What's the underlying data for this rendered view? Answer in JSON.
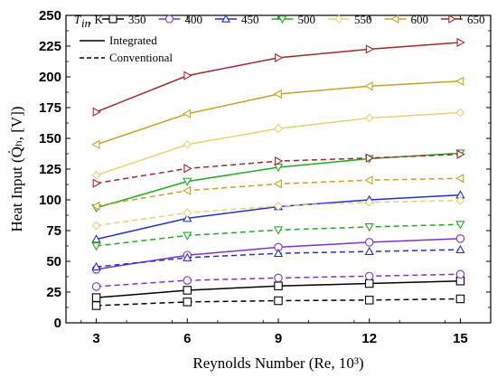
{
  "chart_data": {
    "type": "line",
    "title": "",
    "xlabel": "Reynolds Number (Re, 10³)",
    "ylabel": "Heat Input (Q̇ₕ, [V])",
    "x": [
      3,
      6,
      9,
      12,
      15
    ],
    "xlim": [
      2,
      16
    ],
    "ylim": [
      0,
      250
    ],
    "x_ticks": [
      3,
      6,
      9,
      12,
      15
    ],
    "y_ticks": [
      0,
      25,
      50,
      75,
      100,
      125,
      150,
      175,
      200,
      225,
      250
    ],
    "legend": {
      "title": "T",
      "title_sub": "in",
      "title_suffix": ", K",
      "placement": "top",
      "temperature_entries": [
        "350",
        "400",
        "450",
        "500",
        "550",
        "600",
        "650"
      ],
      "style_entries": [
        {
          "label": "Integrated",
          "dash": "solid"
        },
        {
          "label": "Conventional",
          "dash": "dashed"
        }
      ]
    },
    "series": [
      {
        "name": "350",
        "color": "#000000",
        "marker": "square",
        "integrated": [
          20.5,
          26.5,
          30,
          32,
          34
        ],
        "conventional": [
          14,
          17,
          18,
          18.5,
          19.5
        ]
      },
      {
        "name": "400",
        "color": "#7b33c8",
        "marker": "circle",
        "integrated": [
          43.5,
          55,
          61.5,
          65.5,
          68.5
        ],
        "conventional": [
          29.5,
          34.5,
          36.5,
          38,
          39.5
        ]
      },
      {
        "name": "450",
        "color": "#1f2fd4",
        "marker": "triangle-up",
        "integrated": [
          68,
          85,
          94.5,
          100,
          104
        ],
        "conventional": [
          45.5,
          53,
          56.5,
          58,
          59.5
        ]
      },
      {
        "name": "500",
        "color": "#22aa22",
        "marker": "triangle-down",
        "integrated": [
          93.5,
          115,
          126.5,
          133.5,
          138
        ],
        "conventional": [
          62.5,
          71,
          75.5,
          78,
          80
        ]
      },
      {
        "name": "550",
        "color": "#e8d070",
        "marker": "diamond",
        "integrated": [
          120,
          145,
          158,
          166.5,
          171
        ],
        "conventional": [
          79,
          89.5,
          95,
          98,
          99.5
        ]
      },
      {
        "name": "600",
        "color": "#c8a020",
        "marker": "triangle-left",
        "integrated": [
          145,
          170,
          186,
          192.5,
          196.5
        ],
        "conventional": [
          95,
          107.5,
          113,
          116,
          117.5
        ]
      },
      {
        "name": "650",
        "color": "#a02828",
        "marker": "triangle-right",
        "integrated": [
          171.5,
          201,
          215.5,
          222.5,
          228
        ],
        "conventional": [
          113.5,
          125.5,
          131.5,
          134,
          137
        ]
      }
    ]
  }
}
